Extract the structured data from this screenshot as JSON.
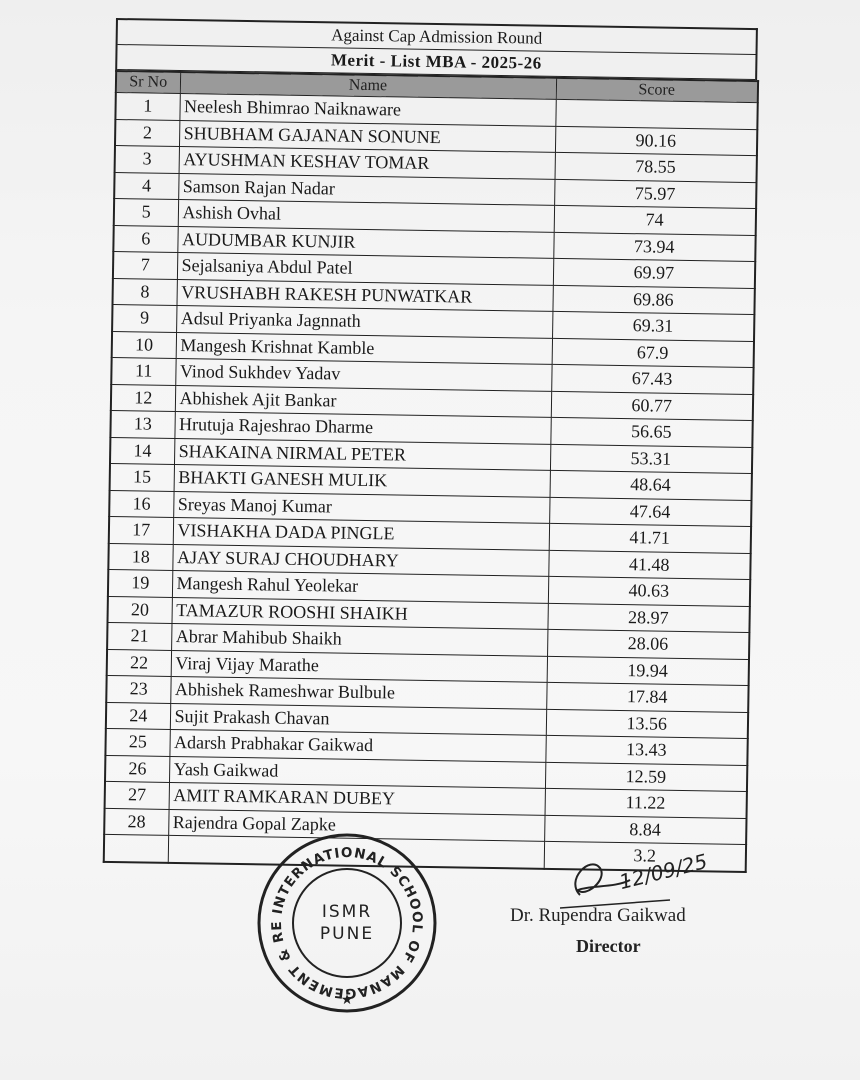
{
  "header": {
    "line1": "Against Cap Admission Round",
    "line2": "Merit - List  MBA - 2025-26"
  },
  "table": {
    "columns": {
      "sr": "Sr No",
      "name": "Name",
      "score": "Score"
    },
    "rows": [
      {
        "sr": "1",
        "name": "Neelesh Bhimrao Naiknaware",
        "score": ""
      },
      {
        "sr": "2",
        "name": "SHUBHAM GAJANAN SONUNE",
        "score": "90.16"
      },
      {
        "sr": "3",
        "name": "AYUSHMAN KESHAV TOMAR",
        "score": "78.55"
      },
      {
        "sr": "4",
        "name": "Samson Rajan Nadar",
        "score": "75.97"
      },
      {
        "sr": "5",
        "name": "Ashish Ovhal",
        "score": "74"
      },
      {
        "sr": "6",
        "name": "AUDUMBAR KUNJIR",
        "score": "73.94"
      },
      {
        "sr": "7",
        "name": "Sejalsaniya Abdul Patel",
        "score": "69.97"
      },
      {
        "sr": "8",
        "name": "VRUSHABH RAKESH PUNWATKAR",
        "score": "69.86"
      },
      {
        "sr": "9",
        "name": "Adsul Priyanka Jagnnath",
        "score": "69.31"
      },
      {
        "sr": "10",
        "name": "Mangesh Krishnat Kamble",
        "score": "67.9"
      },
      {
        "sr": "11",
        "name": "Vinod Sukhdev Yadav",
        "score": "67.43"
      },
      {
        "sr": "12",
        "name": "Abhishek Ajit Bankar",
        "score": "60.77"
      },
      {
        "sr": "13",
        "name": "Hrutuja Rajeshrao Dharme",
        "score": "56.65"
      },
      {
        "sr": "14",
        "name": "SHAKAINA NIRMAL PETER",
        "score": "53.31"
      },
      {
        "sr": "15",
        "name": "BHAKTI GANESH MULIK",
        "score": "48.64"
      },
      {
        "sr": "16",
        "name": "Sreyas Manoj Kumar",
        "score": "47.64"
      },
      {
        "sr": "17",
        "name": "VISHAKHA DADA PINGLE",
        "score": "41.71"
      },
      {
        "sr": "18",
        "name": "AJAY SURAJ CHOUDHARY",
        "score": "41.48"
      },
      {
        "sr": "19",
        "name": "Mangesh Rahul Yeolekar",
        "score": "40.63"
      },
      {
        "sr": "20",
        "name": "TAMAZUR ROOSHI SHAIKH",
        "score": "28.97"
      },
      {
        "sr": "21",
        "name": "Abrar Mahibub Shaikh",
        "score": "28.06"
      },
      {
        "sr": "22",
        "name": "Viraj Vijay Marathe",
        "score": "19.94"
      },
      {
        "sr": "23",
        "name": "Abhishek Rameshwar Bulbule",
        "score": "17.84"
      },
      {
        "sr": "24",
        "name": "Sujit Prakash Chavan",
        "score": "13.56"
      },
      {
        "sr": "25",
        "name": "Adarsh Prabhakar Gaikwad",
        "score": "13.43"
      },
      {
        "sr": "26",
        "name": "Yash Gaikwad",
        "score": "12.59"
      },
      {
        "sr": "27",
        "name": "AMIT RAMKARAN DUBEY",
        "score": "11.22"
      },
      {
        "sr": "28",
        "name": "Rajendra Gopal Zapke",
        "score": "8.84"
      },
      {
        "sr": "",
        "name": "",
        "score": "3.2"
      }
    ]
  },
  "seal": {
    "ring_text": "INTERNATIONAL SCHOOL OF MANAGEMENT & RESEARCH",
    "center_line1": "ISMR",
    "center_line2": "PUNE",
    "star": "★"
  },
  "signature": {
    "scribble_text": "12/09/25",
    "name": "Dr. Rupendra Gaikwad",
    "title": "Director"
  },
  "colors": {
    "ink": "#1a1a1a",
    "header_fill": "#9a9a9a",
    "paper": "#f5f5f5"
  }
}
